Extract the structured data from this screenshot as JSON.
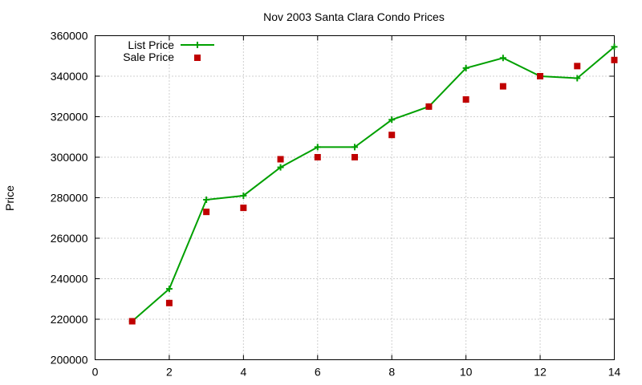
{
  "chart_data": {
    "type": "line",
    "title": "Nov 2003 Santa Clara Condo Prices",
    "xlabel": "",
    "ylabel": "Price",
    "xlim": [
      0,
      14
    ],
    "ylim": [
      200000,
      360000
    ],
    "xticks": [
      "0",
      "2",
      "4",
      "6",
      "8",
      "10",
      "12",
      "14"
    ],
    "yticks": [
      "200000",
      "220000",
      "240000",
      "260000",
      "280000",
      "300000",
      "320000",
      "340000",
      "360000"
    ],
    "grid": true,
    "legend_position": "top-left",
    "x": [
      1,
      2,
      3,
      4,
      5,
      6,
      7,
      8,
      9,
      10,
      11,
      12,
      13,
      14
    ],
    "series": [
      {
        "name": "List Price",
        "style": "line-with-plus-markers",
        "color": "#00a000",
        "values": [
          219000,
          235000,
          279000,
          281000,
          295000,
          305000,
          305000,
          318500,
          325000,
          344000,
          349000,
          340000,
          339000,
          354500
        ]
      },
      {
        "name": "Sale Price",
        "style": "square-markers",
        "color": "#c00000",
        "values": [
          219000,
          228000,
          273000,
          275000,
          299000,
          300000,
          300000,
          311000,
          325000,
          328500,
          335000,
          340000,
          345000,
          348000
        ]
      }
    ]
  }
}
